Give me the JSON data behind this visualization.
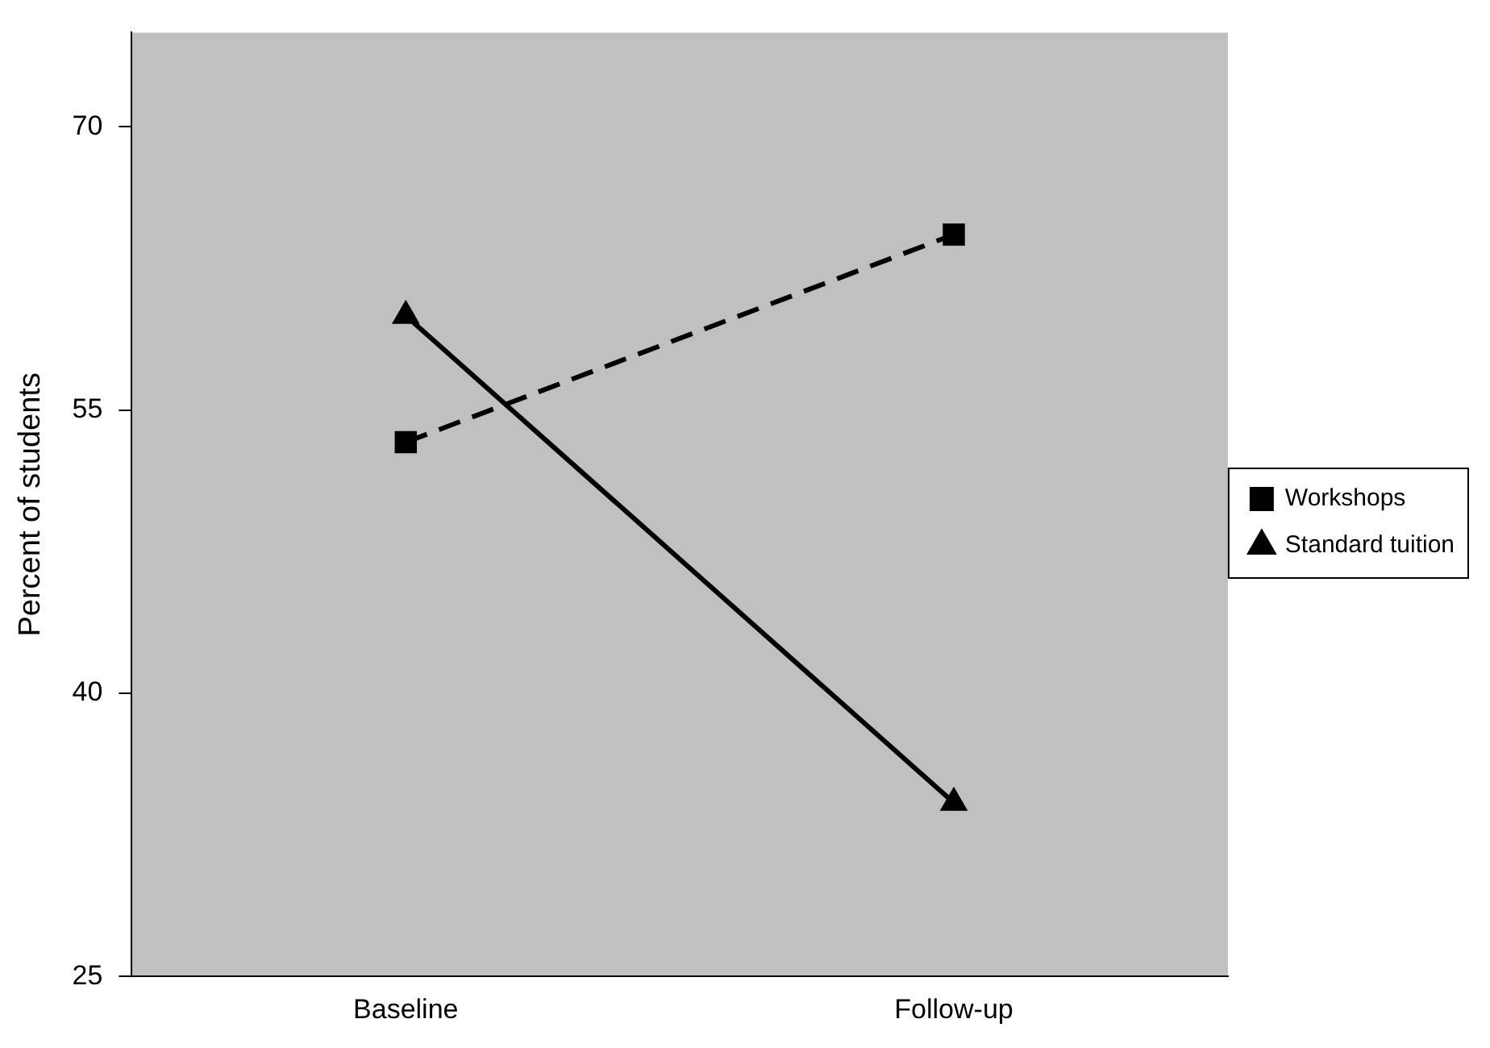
{
  "chart_data": {
    "type": "line",
    "ylabel": "Percent of students",
    "categories": [
      "Baseline",
      "Follow-up"
    ],
    "series": [
      {
        "name": "Workshops",
        "color": "#000000",
        "values": [
          53.3,
          64.3
        ],
        "marker": "square",
        "line_style": "dashed"
      },
      {
        "name": "Standard tuition",
        "color": "#000000",
        "values": [
          60,
          34.2
        ],
        "marker": "triangle",
        "line_style": "solid"
      }
    ],
    "ylim": [
      25,
      75
    ],
    "yticks": [
      25,
      40,
      55,
      70
    ],
    "grid": false,
    "legend": "right"
  }
}
